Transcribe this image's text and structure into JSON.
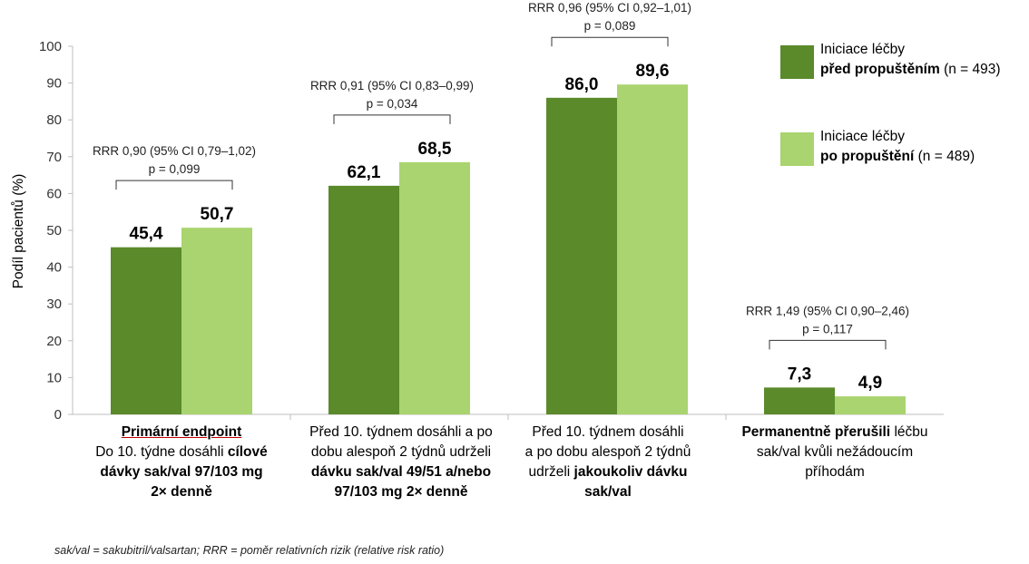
{
  "chart_data": {
    "type": "bar",
    "ylabel": "Podíl pacientů (%)",
    "ylim": [
      0,
      100
    ],
    "yticks": [
      0,
      10,
      20,
      30,
      40,
      50,
      60,
      70,
      80,
      90,
      100
    ],
    "grid": false,
    "series": [
      {
        "name": "před propuštěním",
        "color": "#5a8a2a",
        "values": [
          45.4,
          62.1,
          86.0,
          7.3
        ],
        "labels": [
          "45,4",
          "62,1",
          "86,0",
          "7,3"
        ]
      },
      {
        "name": "po propuštění",
        "color": "#a9d46f",
        "values": [
          50.7,
          68.5,
          89.6,
          4.9
        ],
        "labels": [
          "50,7",
          "68,5",
          "89,6",
          "4,9"
        ]
      }
    ],
    "annotations": [
      {
        "rrr": "RRR 0,90 (95% CI 0,79–1,02)",
        "p": "p = 0,099"
      },
      {
        "rrr": "RRR 0,91 (95% CI 0,83–0,99)",
        "p": "p = 0,034"
      },
      {
        "rrr": "RRR 0,96 (95% CI 0,92–1,01)",
        "p": "p = 0,089"
      },
      {
        "rrr": "RRR 1,49 (95% CI 0,90–2,46)",
        "p": "p = 0,117"
      }
    ],
    "categories": [
      {
        "l1_bold_ul": "Primární endpoint",
        "l2": "Do 10. týdne dosáhli ",
        "l2_bold": "cílové",
        "l3_bold": "dávky sak/val 97/103 mg",
        "l4_bold": "2× denně"
      },
      {
        "l1": "Před 10. týdnem dosáhli a po",
        "l2": "dobu alespoň 2 týdnů udrželi",
        "l3_bold": "dávku sak/val 49/51 a/nebo",
        "l4_bold": "97/103 mg 2× denně"
      },
      {
        "l1": "Před 10. týdnem dosáhli",
        "l2": "a po dobu alespoň 2 týdnů",
        "l3": "udrželi ",
        "l3_bold": "jakoukoliv dávku",
        "l4_bold": "sak/val"
      },
      {
        "l1_bold": "Permanentně přerušili",
        "l1": " léčbu",
        "l2": "sak/val kvůli nežádoucím",
        "l3": "příhodám"
      }
    ]
  },
  "legend": [
    {
      "line1": "Iniciace léčby",
      "bold": "před propuštěním",
      "rest": " (n = 493)",
      "color": "#5a8a2a"
    },
    {
      "line1": "Iniciace léčby",
      "bold": "po propuštění",
      "rest": " (n = 489)",
      "color": "#a9d46f"
    }
  ],
  "footnote": "sak/val = sakubitril/valsartan; RRR = poměr relativních rizik (relative risk ratio)"
}
